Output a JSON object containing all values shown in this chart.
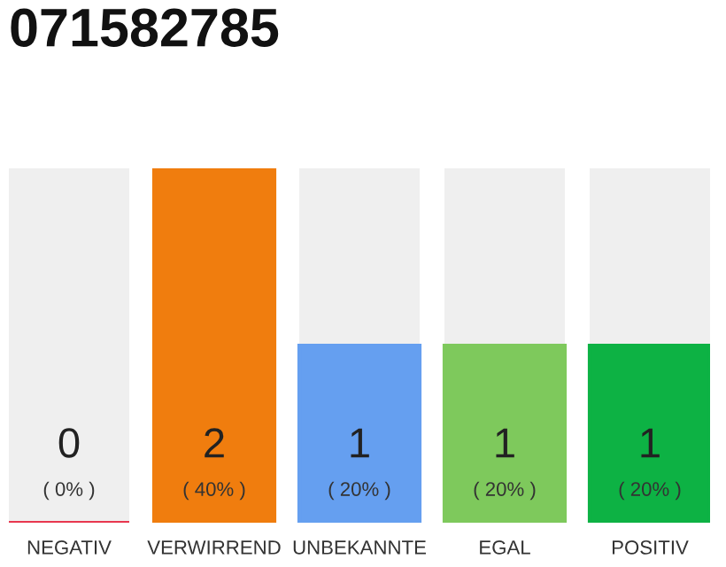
{
  "chart_data": {
    "type": "bar",
    "title": "071582785",
    "categories": [
      "NEGATIV",
      "VERWIRREND",
      "UNBEKANNTE",
      "EGAL",
      "POSITIV"
    ],
    "values": [
      0,
      2,
      1,
      1,
      1
    ],
    "colors": [
      "#e8374f",
      "#f07d0e",
      "#659ff0",
      "#7ec95c",
      "#0db244"
    ],
    "value_labels": [
      "0\n( 0% )",
      "2\n( 40% )",
      "1\n( 20% )",
      "1\n( 20% )",
      "1\n( 20% )"
    ],
    "ylim": [
      0,
      2
    ],
    "tick_labels": "x",
    "grid": false,
    "legend": false
  }
}
